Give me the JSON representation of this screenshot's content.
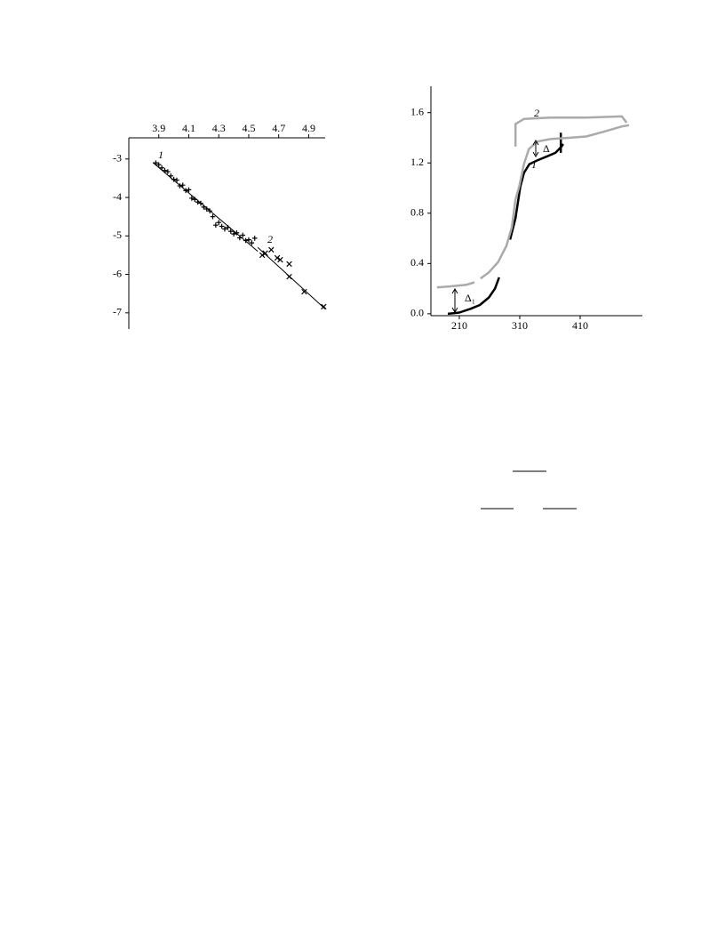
{
  "chart_data": [
    {
      "type": "scatter",
      "xlim": [
        3.7,
        5.01
      ],
      "xticks": [
        3.9,
        4.1,
        4.3,
        4.5,
        4.7,
        4.9
      ],
      "ylim": [
        -7.42,
        -2.45
      ],
      "yticks": [
        -3,
        -4,
        -5,
        -6,
        -7
      ],
      "series": [
        {
          "name": "1",
          "marker": "+",
          "color": "#000000",
          "x": [
            3.88,
            3.9,
            3.92,
            3.94,
            3.96,
            3.98,
            4.0,
            4.02,
            4.04,
            4.06,
            4.08,
            4.1,
            4.12,
            4.14,
            4.16,
            4.18,
            4.2,
            4.22,
            4.24,
            4.26,
            4.28,
            4.3,
            4.32,
            4.34,
            4.36,
            4.38,
            4.4,
            4.42,
            4.44,
            4.46,
            4.48,
            4.5,
            4.52,
            4.54
          ],
          "values": [
            -3.1,
            -3.15,
            -3.23,
            -3.3,
            -3.33,
            -3.44,
            -3.53,
            -3.55,
            -3.7,
            -3.68,
            -3.82,
            -3.8,
            -4.02,
            -4.05,
            -4.12,
            -4.15,
            -4.25,
            -4.3,
            -4.35,
            -4.5,
            -4.72,
            -4.65,
            -4.75,
            -4.82,
            -4.78,
            -4.88,
            -4.95,
            -4.92,
            -5.05,
            -4.98,
            -5.12,
            -5.1,
            -5.18,
            -5.06
          ]
        },
        {
          "name": "2",
          "marker": "x",
          "color": "#000000",
          "x": [
            4.59,
            4.61,
            4.65,
            4.69,
            4.71,
            4.77,
            4.77,
            4.87,
            5.0
          ],
          "values": [
            -5.5,
            -5.45,
            -5.36,
            -5.57,
            -5.62,
            -5.73,
            -6.06,
            -6.45,
            -6.84
          ]
        }
      ],
      "fit_lines": [
        {
          "x": [
            3.86,
            4.56
          ],
          "values": [
            -3.09,
            -5.4
          ]
        },
        {
          "x": [
            4.56,
            5.01
          ],
          "values": [
            -5.3,
            -6.9
          ]
        }
      ]
    },
    {
      "type": "line",
      "xlim": [
        163,
        513
      ],
      "xticks": [
        210,
        310,
        410
      ],
      "ylim": [
        -0.015,
        1.81
      ],
      "yticks": [
        {
          "value": 0,
          "label": "0.0"
        },
        0.4,
        0.8,
        1.2,
        1.6
      ],
      "series": [
        {
          "name": "1",
          "color": "#000000",
          "x": [
            191,
            210,
            229,
            244,
            259,
            269,
            276,
            null,
            294,
            303,
            311,
            317,
            326,
            339,
            354,
            369,
            379,
            382,
            null,
            378,
            378
          ],
          "values": [
            0,
            0.01,
            0.04,
            0.07,
            0.13,
            0.2,
            0.29,
            null,
            0.59,
            0.76,
            1.01,
            1.12,
            1.19,
            1.22,
            1.25,
            1.28,
            1.33,
            1.35,
            null,
            1.28,
            1.44
          ]
        },
        {
          "name": "2",
          "color": "#aaaaaa",
          "x": [
            173,
            199,
            221,
            235,
            null,
            245,
            259,
            274,
            288,
            297,
            303,
            309,
            317,
            325,
            339,
            361,
            391,
            420,
            450,
            479,
            491,
            null,
            303,
            303,
            317,
            361,
            420,
            479,
            487
          ],
          "values": [
            0.21,
            0.22,
            0.23,
            0.25,
            null,
            0.28,
            0.33,
            0.41,
            0.54,
            0.69,
            0.91,
            1.01,
            1.19,
            1.31,
            1.37,
            1.39,
            1.4,
            1.41,
            1.45,
            1.49,
            1.5,
            null,
            1.33,
            1.51,
            1.55,
            1.56,
            1.56,
            1.57,
            1.52
          ]
        }
      ],
      "annotations": [
        "Δ₁",
        "Δ"
      ]
    }
  ]
}
